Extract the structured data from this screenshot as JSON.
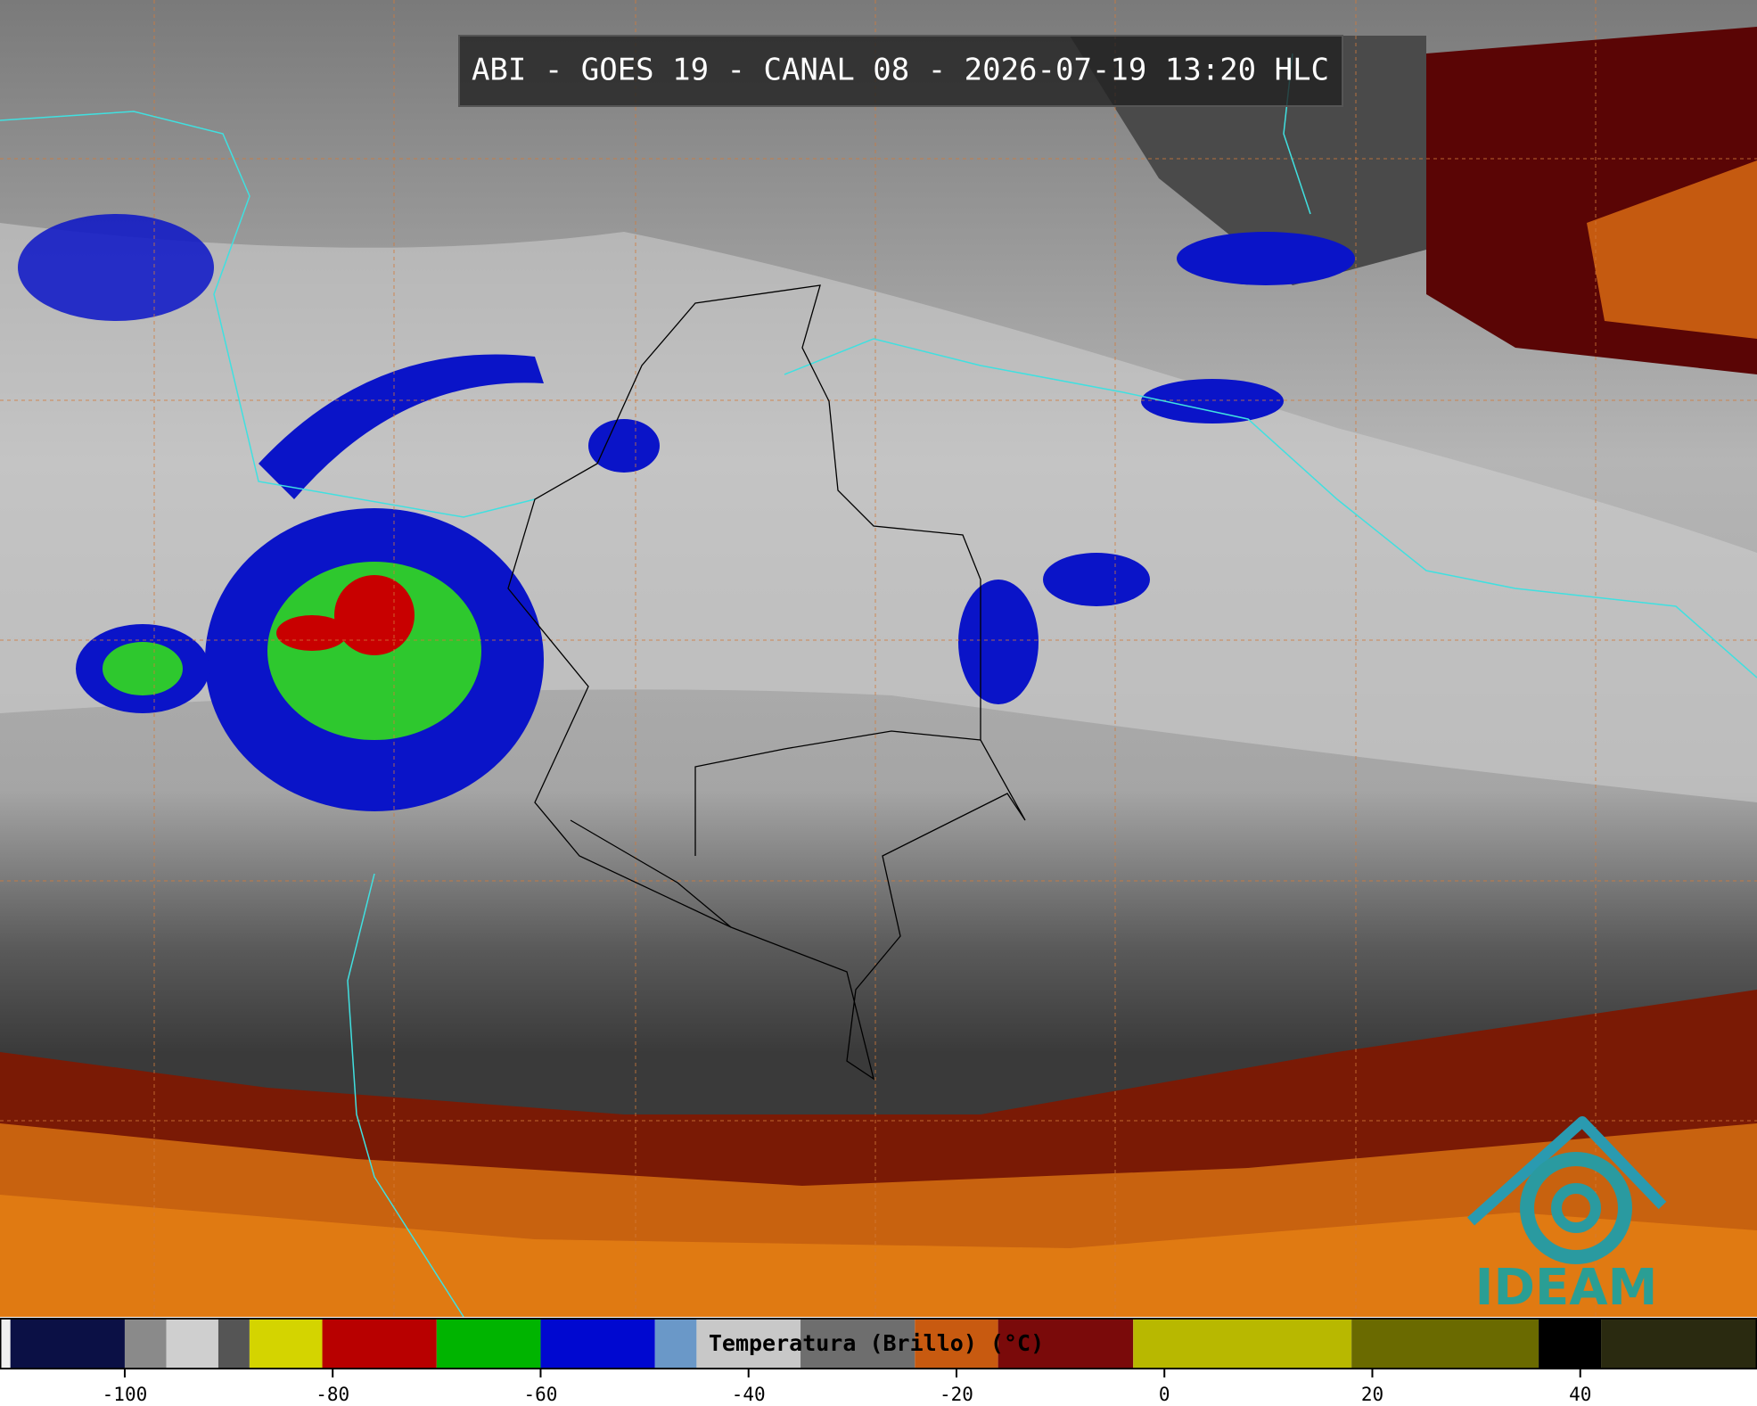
{
  "header": {
    "title": "ABI - GOES 19 - CANAL 08 - 2026-07-19 13:20 HLC"
  },
  "logo": {
    "text": "IDEAM"
  },
  "colorbar": {
    "label": "Temperatura (Brillo) (°C)",
    "xlim": [
      -112,
      57
    ],
    "ticks": [
      -100,
      -80,
      -60,
      -40,
      -20,
      0,
      20,
      40
    ],
    "segments": [
      {
        "from": -112,
        "to": -111,
        "color": "#f0f0f0"
      },
      {
        "from": -111,
        "to": -100,
        "color": "#0b1045"
      },
      {
        "from": -100,
        "to": -96,
        "color": "#8a8a8a"
      },
      {
        "from": -96,
        "to": -91,
        "color": "#cfcfcf"
      },
      {
        "from": -91,
        "to": -88,
        "color": "#555555"
      },
      {
        "from": -88,
        "to": -81,
        "color": "#d4d400"
      },
      {
        "from": -81,
        "to": -70,
        "color": "#b80000"
      },
      {
        "from": -70,
        "to": -60,
        "color": "#00b400"
      },
      {
        "from": -60,
        "to": -49,
        "color": "#0008d0"
      },
      {
        "from": -49,
        "to": -45,
        "color": "#6a98c8"
      },
      {
        "from": -45,
        "to": -35,
        "color": "#c8c8c8"
      },
      {
        "from": -35,
        "to": -24,
        "color": "#6e6e6e"
      },
      {
        "from": -24,
        "to": -16,
        "color": "#c85a10"
      },
      {
        "from": -16,
        "to": -3,
        "color": "#7a0a0a"
      },
      {
        "from": -3,
        "to": 18,
        "color": "#b8b800"
      },
      {
        "from": 18,
        "to": 36,
        "color": "#6a6a00"
      },
      {
        "from": 36,
        "to": 42,
        "color": "#000000"
      },
      {
        "from": 42,
        "to": 57,
        "color": "#2a2a10"
      }
    ]
  }
}
